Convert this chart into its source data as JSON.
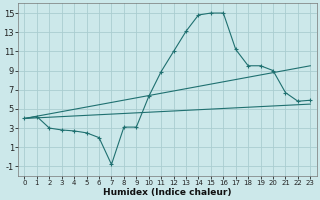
{
  "xlabel": "Humidex (Indice chaleur)",
  "bg_color": "#cce8ea",
  "grid_color": "#aacdd0",
  "line_color": "#1f7070",
  "xlim": [
    -0.5,
    23.5
  ],
  "ylim": [
    -2,
    16
  ],
  "xticks": [
    0,
    1,
    2,
    3,
    4,
    5,
    6,
    7,
    8,
    9,
    10,
    11,
    12,
    13,
    14,
    15,
    16,
    17,
    18,
    19,
    20,
    21,
    22,
    23
  ],
  "yticks": [
    -1,
    1,
    3,
    5,
    7,
    9,
    11,
    13,
    15
  ],
  "line1_x": [
    0,
    1,
    2,
    3,
    4,
    5,
    6,
    7,
    8,
    9,
    10,
    11,
    12,
    13,
    14,
    15,
    16,
    17,
    18,
    19,
    20,
    21,
    22,
    23
  ],
  "line1_y": [
    4.0,
    4.2,
    3.0,
    2.8,
    2.7,
    2.5,
    2.0,
    -0.8,
    3.1,
    3.1,
    6.3,
    8.9,
    11.0,
    13.1,
    14.8,
    15.0,
    15.0,
    11.2,
    9.5,
    9.5,
    9.0,
    6.7,
    5.8,
    5.9
  ],
  "line2_x": [
    0,
    23
  ],
  "line2_y": [
    4.0,
    9.5
  ],
  "line3_x": [
    0,
    23
  ],
  "line3_y": [
    4.0,
    5.5
  ]
}
